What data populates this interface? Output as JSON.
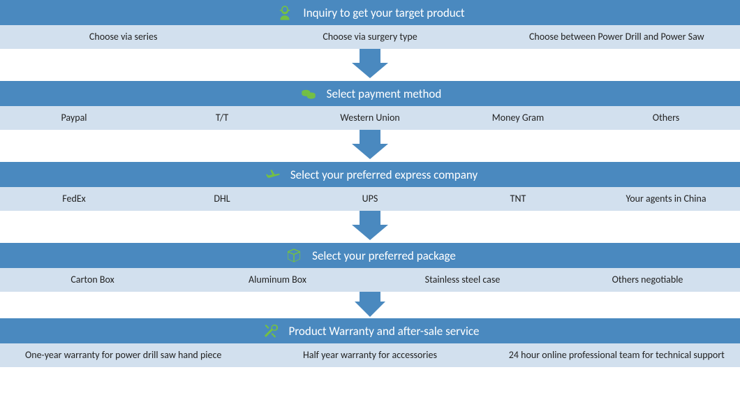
{
  "colors": {
    "header_bg": "#4a89bf",
    "options_bg": "#d2e0ee",
    "options_text": "#222222",
    "header_text": "#ffffff",
    "icon_color": "#74c043",
    "arrow_color": "#4a89bf"
  },
  "arrow": {
    "shaft_width": 30,
    "head_width": 52,
    "head_height": 24
  },
  "steps": [
    {
      "icon": "customer",
      "title": "Inquiry to get your target product",
      "options": [
        "Choose via series",
        "Choose via surgery type",
        "Choose  between Power Drill and Power Saw"
      ]
    },
    {
      "icon": "coins",
      "title": "Select payment method",
      "options": [
        "Paypal",
        "T/T",
        "Western Union",
        "Money Gram",
        "Others"
      ]
    },
    {
      "icon": "plane",
      "title": "Select your preferred express company",
      "options": [
        "FedEx",
        "DHL",
        "UPS",
        "TNT",
        "Your agents in China"
      ]
    },
    {
      "icon": "package",
      "title": "Select your preferred package",
      "options": [
        "Carton Box",
        "Aluminum Box",
        "Stainless steel case",
        "Others negotiable"
      ]
    },
    {
      "icon": "tools",
      "title": "Product Warranty and after-sale service",
      "options": [
        "One-year warranty for power drill saw hand piece",
        "Half year warranty for accessories",
        "24 hour online professional team for technical support"
      ]
    }
  ]
}
